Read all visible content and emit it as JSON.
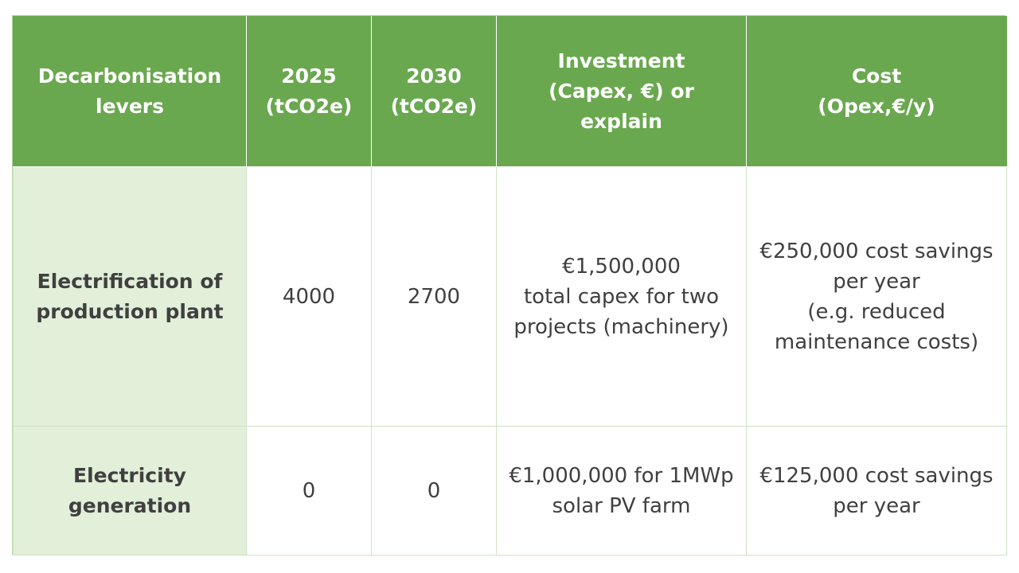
{
  "colors": {
    "header_bg": "#6aa84f",
    "header_text": "#ffffff",
    "row_header_bg": "#e2efd9",
    "body_text": "#404040"
  },
  "table": {
    "headers": [
      [
        "Decarbonisation",
        "levers"
      ],
      [
        "2025",
        "(tCO2e)"
      ],
      [
        "2030",
        "(tCO2e)"
      ],
      [
        "Investment",
        "(Capex, €) or explain"
      ],
      [
        "Cost",
        "(Opex,€/y)"
      ]
    ],
    "rows": [
      {
        "lever": [
          "Electrification of",
          "production plant"
        ],
        "y2025": "4000",
        "y2030": "2700",
        "investment": [
          "€1,500,000",
          "total capex for two",
          "projects (machinery)"
        ],
        "cost": [
          "€250,000 cost savings",
          "per year",
          "(e.g. reduced",
          "maintenance costs)"
        ]
      },
      {
        "lever": [
          "Electricity",
          "generation"
        ],
        "y2025": "0",
        "y2030": "0",
        "investment": [
          "€1,000,000 for 1MWp",
          "solar PV farm"
        ],
        "cost": [
          "€125,000 cost savings",
          "per year"
        ]
      }
    ]
  }
}
